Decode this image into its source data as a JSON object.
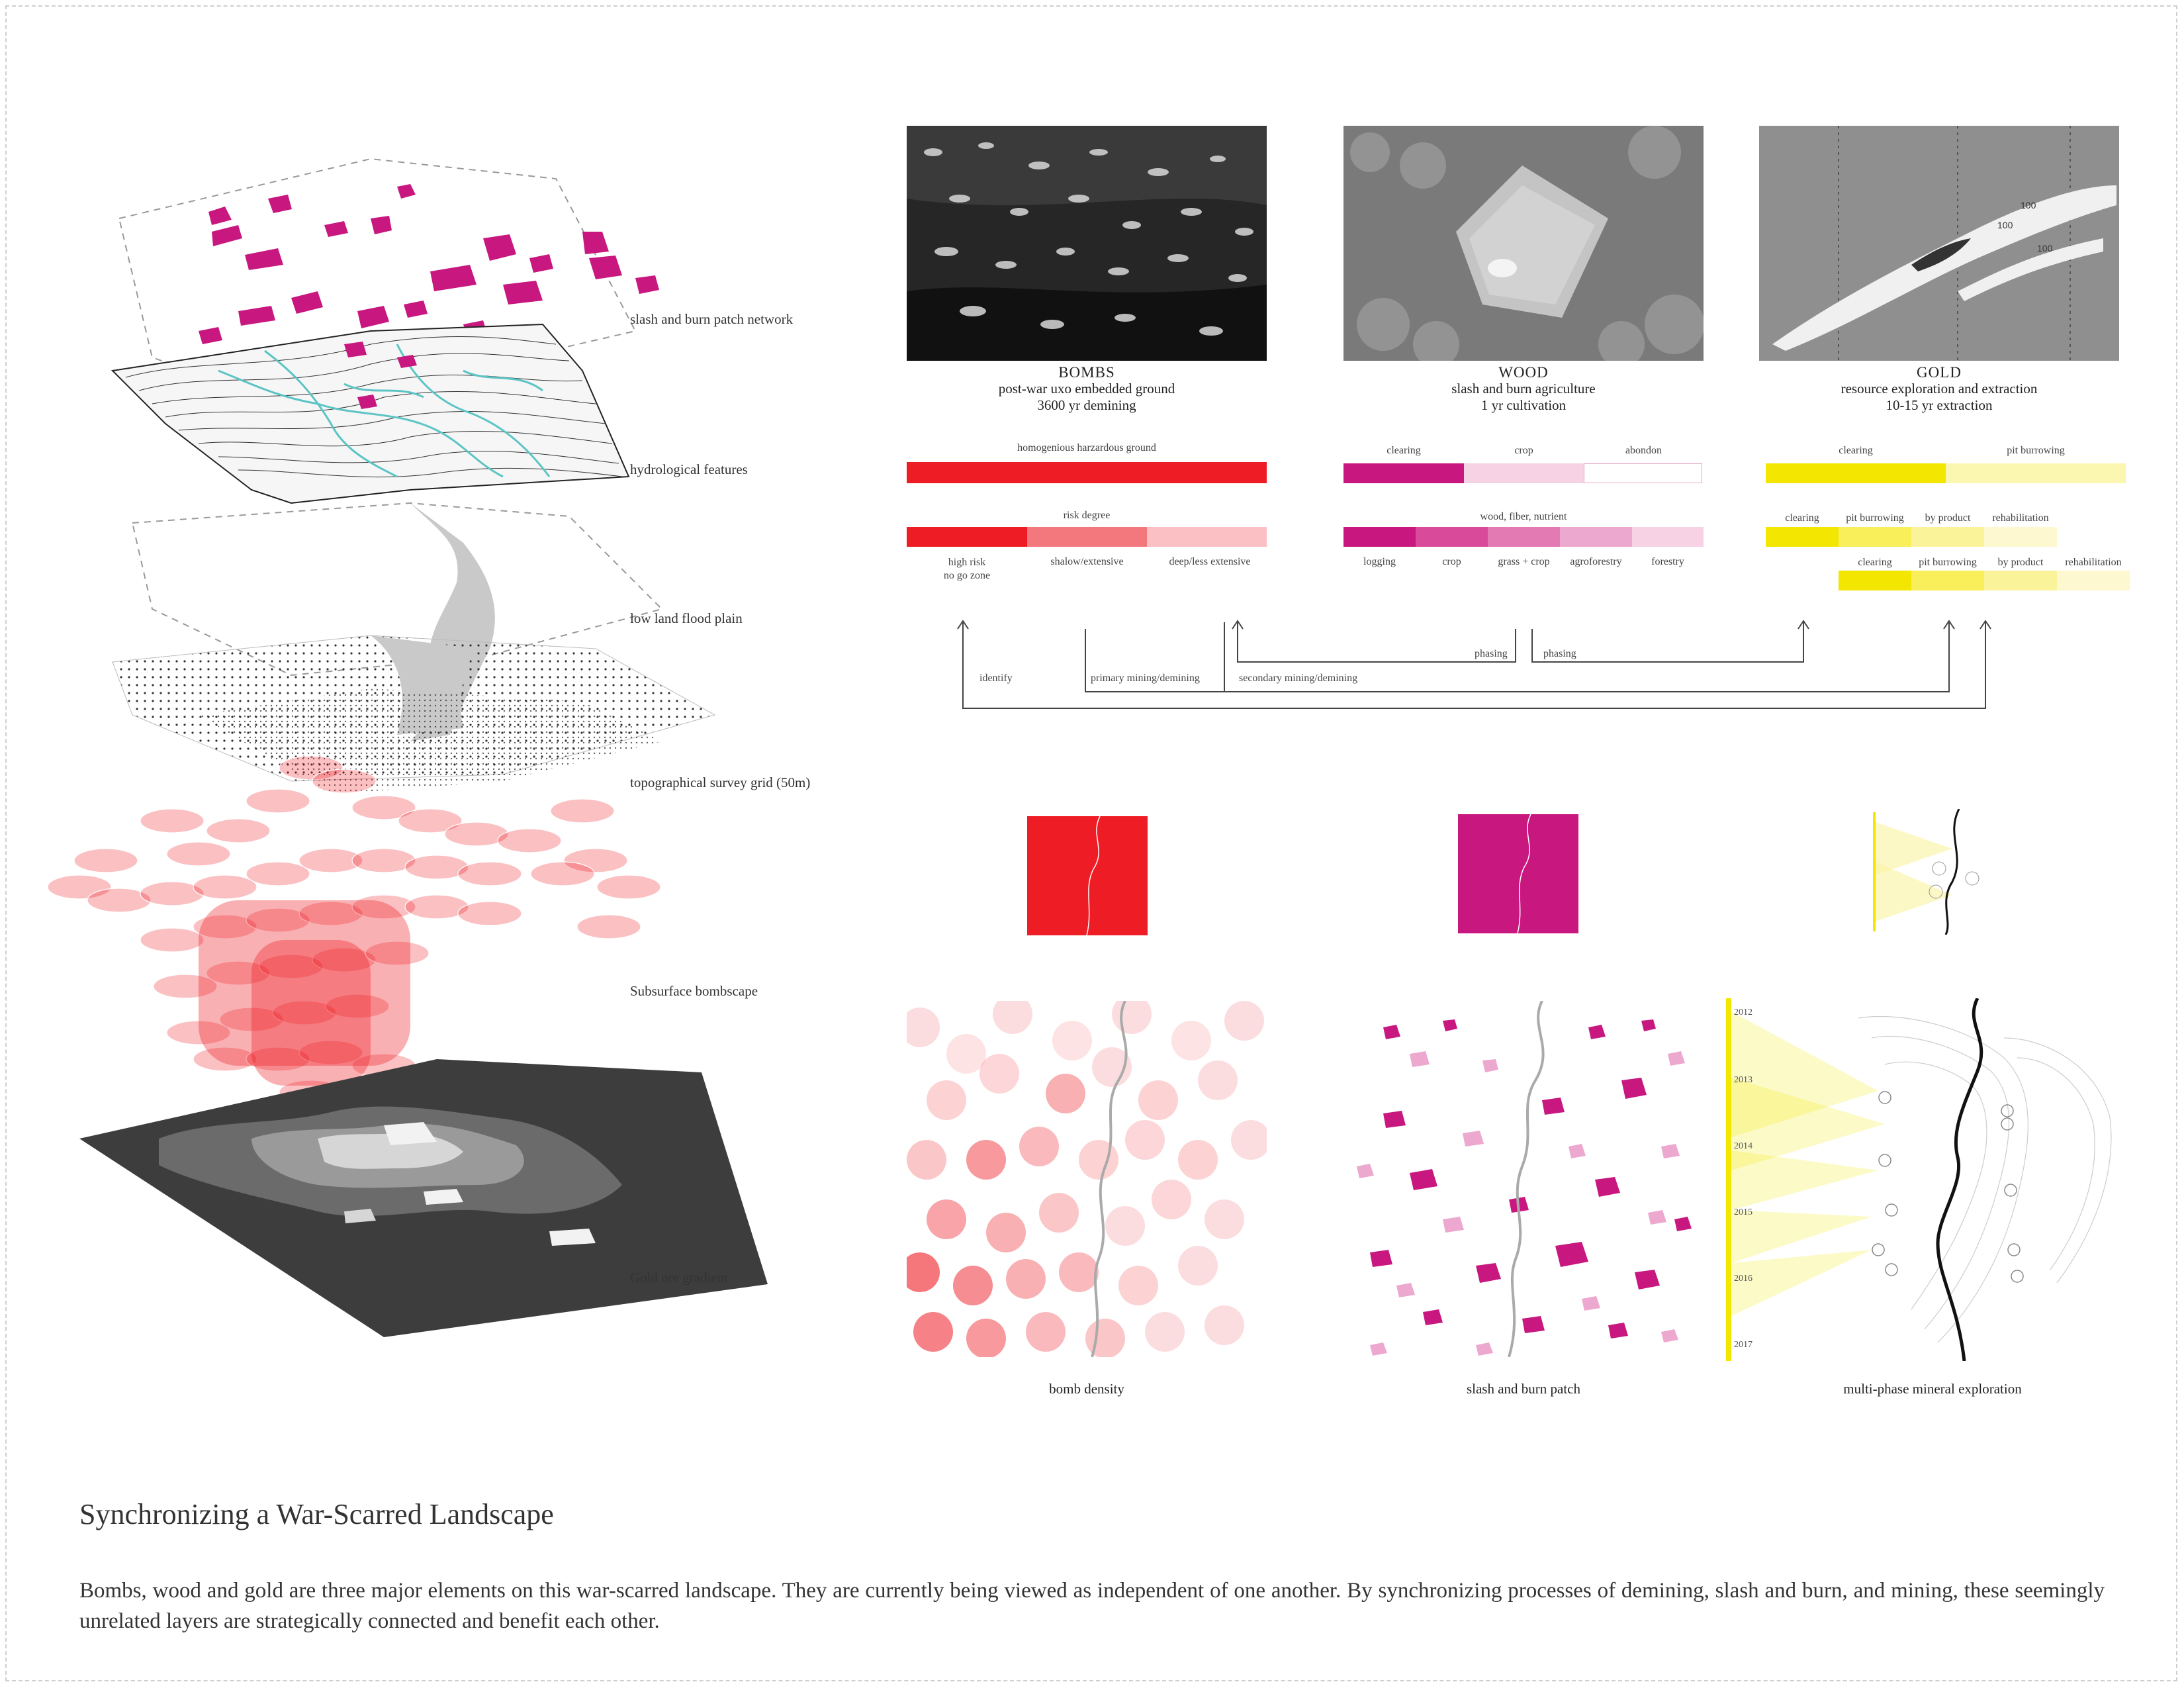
{
  "layers": {
    "slash_burn": "slash and burn patch network",
    "hydro": "hydrological features",
    "flood": "low land flood plain",
    "grid": "topographical survey grid (50m)",
    "bombscape": "Subsurface bombscape",
    "gold": "Gold ore gradient"
  },
  "columns": {
    "bombs": {
      "title": "BOMBS",
      "line1": "post-war uxo embedded ground",
      "line2": "3600 yr demining"
    },
    "wood": {
      "title": "WOOD",
      "line1": "slash and burn agriculture",
      "line2": "1 yr cultivation"
    },
    "gold": {
      "title": "GOLD",
      "line1": "resource exploration and extraction",
      "line2": "10-15 yr extraction"
    }
  },
  "bars": {
    "bombs_top_label": "homogenious harzardous ground",
    "bombs_mid_label": "risk degree",
    "bombs_seg_labels": [
      "high risk",
      "no go zone",
      "shalow/extensive",
      "deep/less extensive"
    ],
    "wood_top_labels": [
      "clearing",
      "crop",
      "abondon"
    ],
    "wood_mid_label": "wood, fiber, nutrient",
    "wood_seg_labels": [
      "logging",
      "crop",
      "grass + crop",
      "agroforestry",
      "forestry"
    ],
    "gold_top_labels": [
      "clearing",
      "pit burrowing"
    ],
    "gold_row1_labels": [
      "clearing",
      "pit burrowing",
      "by product",
      "rehabilitation"
    ],
    "gold_row2_labels": [
      "clearing",
      "pit burrowing",
      "by product",
      "rehabilitation"
    ]
  },
  "flow": {
    "identify": "identify",
    "primary": "primary mining/demining",
    "secondary": "secondary mining/demining",
    "phasing1": "phasing",
    "phasing2": "phasing"
  },
  "maps": {
    "bomb": "bomb density",
    "slash": "slash and burn patch",
    "mineral": "multi-phase mineral exploration"
  },
  "years": [
    "2012",
    "2013",
    "2014",
    "2015",
    "2016",
    "2017"
  ],
  "photo_numbers": [
    "100",
    "100",
    "100"
  ],
  "colors": {
    "red": "#ee1c25",
    "magenta": "#c8177f",
    "yellow": "#f3e600",
    "teal": "#5cc4c4"
  },
  "footer": {
    "title": "Synchronizing a War-Scarred Landscape",
    "text": "Bombs, wood and gold are three major elements on this war-scarred landscape. They are currently being viewed as independent of one another. By synchronizing processes of demining, slash and burn, and mining, these seemingly unrelated layers are strategically connected and benefit each other."
  }
}
